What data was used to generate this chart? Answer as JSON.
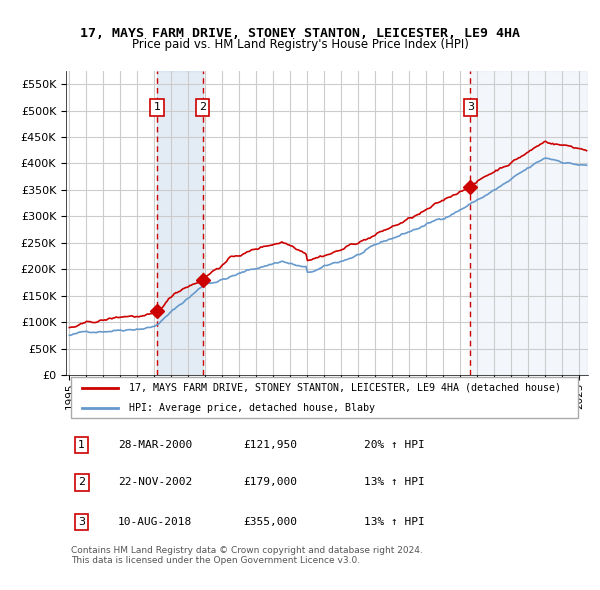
{
  "title": "17, MAYS FARM DRIVE, STONEY STANTON, LEICESTER, LE9 4HA",
  "subtitle": "Price paid vs. HM Land Registry's House Price Index (HPI)",
  "red_line_label": "17, MAYS FARM DRIVE, STONEY STANTON, LEICESTER, LE9 4HA (detached house)",
  "blue_line_label": "HPI: Average price, detached house, Blaby",
  "transactions": [
    {
      "num": 1,
      "date": "2000-03-28",
      "price": 121950,
      "hpi_pct": "20% ↑ HPI",
      "date_label": "28-MAR-2000"
    },
    {
      "num": 2,
      "date": "2002-11-22",
      "price": 179000,
      "hpi_pct": "13% ↑ HPI",
      "date_label": "22-NOV-2002"
    },
    {
      "num": 3,
      "date": "2018-08-10",
      "price": 355000,
      "hpi_pct": "13% ↑ HPI",
      "date_label": "10-AUG-2018"
    }
  ],
  "red_color": "#cc0000",
  "blue_color": "#6699cc",
  "bg_color": "#ddeeff",
  "between_bg": "#ddeeff",
  "grid_color": "#cccccc",
  "dashed_line_color": "#cc0000",
  "ylim": [
    0,
    575000
  ],
  "ytick_step": 50000,
  "footer": "Contains HM Land Registry data © Crown copyright and database right 2024.\nThis data is licensed under the Open Government Licence v3.0."
}
